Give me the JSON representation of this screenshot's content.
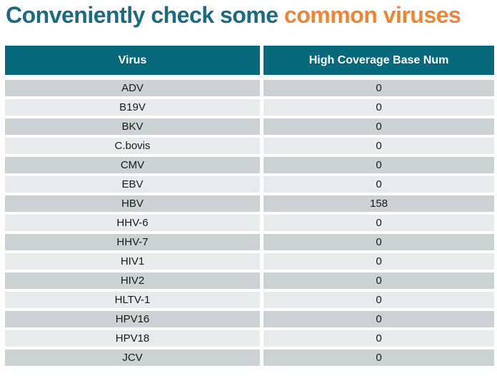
{
  "title": {
    "main": "Conveniently check some",
    "highlight": "common viruses"
  },
  "colors": {
    "title_teal": "#1b6a7e",
    "title_orange": "#ef8435",
    "header_bg": "#07697b",
    "header_text": "#ffffff",
    "row_dark": "#ccd2d3",
    "row_light": "#e7ebeb",
    "cell_text": "#1a1a1a"
  },
  "table": {
    "headers": [
      "Virus",
      "High Coverage Base Num"
    ],
    "rows": [
      {
        "virus": "ADV",
        "value": "0"
      },
      {
        "virus": "B19V",
        "value": "0"
      },
      {
        "virus": "BKV",
        "value": "0"
      },
      {
        "virus": "C.bovis",
        "value": "0"
      },
      {
        "virus": "CMV",
        "value": "0"
      },
      {
        "virus": "EBV",
        "value": "0"
      },
      {
        "virus": "HBV",
        "value": "158"
      },
      {
        "virus": "HHV-6",
        "value": "0"
      },
      {
        "virus": "HHV-7",
        "value": "0"
      },
      {
        "virus": "HIV1",
        "value": "0"
      },
      {
        "virus": "HIV2",
        "value": "0"
      },
      {
        "virus": "HLTV-1",
        "value": "0"
      },
      {
        "virus": "HPV16",
        "value": "0"
      },
      {
        "virus": "HPV18",
        "value": "0"
      },
      {
        "virus": "JCV",
        "value": "0"
      }
    ]
  },
  "chart_data": {
    "type": "table",
    "title": "Conveniently check some common viruses",
    "columns": [
      "Virus",
      "High Coverage Base Num"
    ],
    "categories": [
      "ADV",
      "B19V",
      "BKV",
      "C.bovis",
      "CMV",
      "EBV",
      "HBV",
      "HHV-6",
      "HHV-7",
      "HIV1",
      "HIV2",
      "HLTV-1",
      "HPV16",
      "HPV18",
      "JCV"
    ],
    "values": [
      0,
      0,
      0,
      0,
      0,
      0,
      158,
      0,
      0,
      0,
      0,
      0,
      0,
      0,
      0
    ]
  }
}
